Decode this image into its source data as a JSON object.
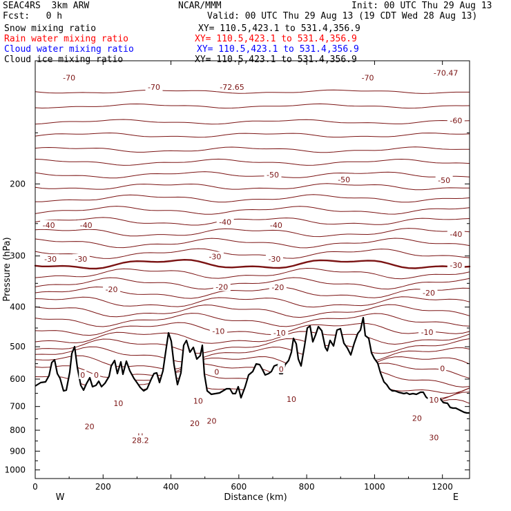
{
  "header": {
    "model": "SEAC4RS  3km ARW",
    "org": "NCAR/MMM",
    "init": "Init: 00 UTC Thu 29 Aug 13",
    "fcst": "Fcst:   0 h",
    "valid": "Valid: 00 UTC Thu 29 Aug 13 (19 CDT Wed 28 Aug 13)",
    "fields": [
      {
        "name": "Snow mixing ratio",
        "xy": "XY= 110.5,423.1 to 531.4,356.9",
        "color": "#000000"
      },
      {
        "name": "Rain water mixing ratio",
        "xy": "XY= 110.5,423.1 to 531.4,356.9",
        "color": "#ff0000"
      },
      {
        "name": "Cloud water mixing ratio",
        "xy": "XY= 110.5,423.1 to 531.4,356.9",
        "color": "#0000ff"
      },
      {
        "name": "Cloud ice mixing ratio",
        "xy": "XY= 110.5,423.1 to 531.4,356.9",
        "color": "#000000"
      }
    ]
  },
  "chart_data": {
    "type": "line",
    "xlabel": "Distance (km)",
    "ylabel": "Pressure (hPa)",
    "xlim": [
      0,
      1280
    ],
    "ylim": [
      1050,
      100
    ],
    "y_scale": "log",
    "x_ticks": [
      "0",
      "200",
      "400",
      "600",
      "800",
      "1000",
      "1200"
    ],
    "y_ticks": [
      "200",
      "300",
      "400",
      "500",
      "600",
      "700",
      "800",
      "900",
      "1000"
    ],
    "end_labels": {
      "left": "W",
      "right": "E"
    },
    "contour_color": "#7a1212",
    "terrain_color": "#000000",
    "contour_interval": 5,
    "contour_labels": [
      {
        "x": 100,
        "p": 110,
        "text": "-70"
      },
      {
        "x": 350,
        "p": 116,
        "text": "-70"
      },
      {
        "x": 580,
        "p": 116,
        "text": "-72.65"
      },
      {
        "x": 980,
        "p": 110,
        "text": "-70"
      },
      {
        "x": 1210,
        "p": 107,
        "text": "-70.47"
      },
      {
        "x": 1240,
        "p": 140,
        "text": "-60"
      },
      {
        "x": 700,
        "p": 190,
        "text": "-50"
      },
      {
        "x": 910,
        "p": 195,
        "text": "-50"
      },
      {
        "x": 1205,
        "p": 196,
        "text": "-50"
      },
      {
        "x": 40,
        "p": 252,
        "text": "-40"
      },
      {
        "x": 150,
        "p": 252,
        "text": "-40"
      },
      {
        "x": 560,
        "p": 248,
        "text": "-40"
      },
      {
        "x": 710,
        "p": 252,
        "text": "-40"
      },
      {
        "x": 1240,
        "p": 265,
        "text": "-40"
      },
      {
        "x": 45,
        "p": 305,
        "text": "-30"
      },
      {
        "x": 135,
        "p": 305,
        "text": "-30"
      },
      {
        "x": 530,
        "p": 301,
        "text": "-30"
      },
      {
        "x": 705,
        "p": 305,
        "text": "-30"
      },
      {
        "x": 1240,
        "p": 316,
        "text": "-30"
      },
      {
        "x": 225,
        "p": 362,
        "text": "-20"
      },
      {
        "x": 550,
        "p": 357,
        "text": "-20"
      },
      {
        "x": 715,
        "p": 358,
        "text": "-20"
      },
      {
        "x": 1160,
        "p": 369,
        "text": "-20"
      },
      {
        "x": 540,
        "p": 458,
        "text": "-10"
      },
      {
        "x": 720,
        "p": 462,
        "text": "-10"
      },
      {
        "x": 1155,
        "p": 461,
        "text": "-10"
      },
      {
        "x": 140,
        "p": 586,
        "text": "0"
      },
      {
        "x": 180,
        "p": 586,
        "text": "0"
      },
      {
        "x": 535,
        "p": 576,
        "text": "0"
      },
      {
        "x": 725,
        "p": 567,
        "text": "0"
      },
      {
        "x": 1200,
        "p": 565,
        "text": "0"
      },
      {
        "x": 245,
        "p": 688,
        "text": "10"
      },
      {
        "x": 480,
        "p": 678,
        "text": "10"
      },
      {
        "x": 755,
        "p": 672,
        "text": "10"
      },
      {
        "x": 1175,
        "p": 674,
        "text": "10"
      },
      {
        "x": 160,
        "p": 783,
        "text": "20"
      },
      {
        "x": 470,
        "p": 770,
        "text": "20"
      },
      {
        "x": 520,
        "p": 759,
        "text": "20"
      },
      {
        "x": 1125,
        "p": 747,
        "text": "20"
      },
      {
        "x": 1175,
        "p": 834,
        "text": "30"
      },
      {
        "x": 310,
        "p": 826,
        "text": "H"
      },
      {
        "x": 310,
        "p": 846,
        "text": "28.2"
      }
    ]
  }
}
